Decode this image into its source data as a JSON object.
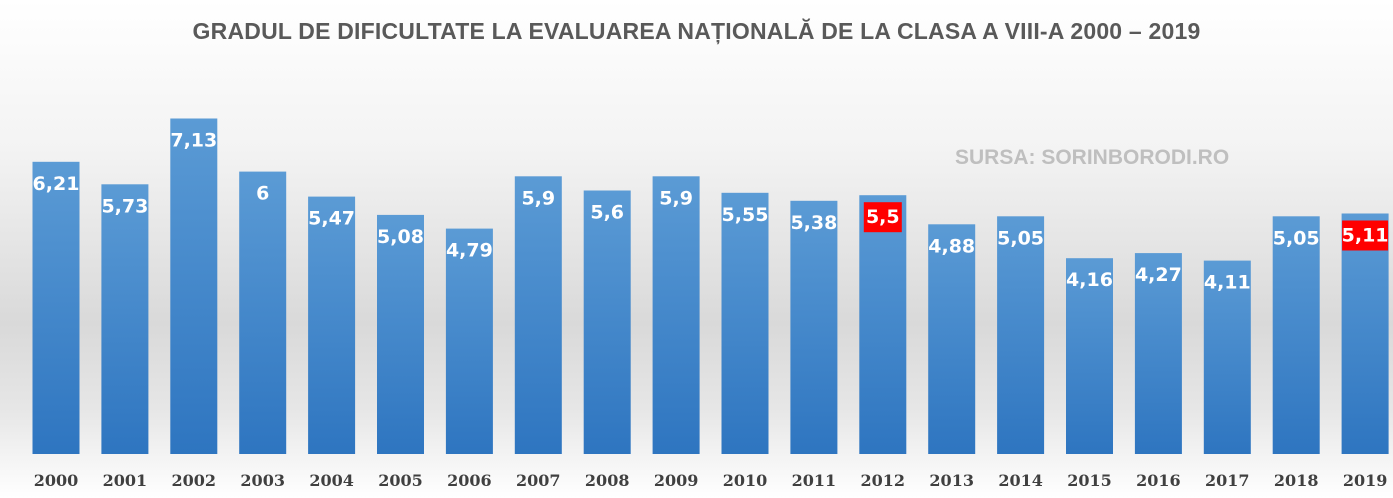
{
  "chart_data": {
    "type": "bar",
    "title": "GRADUL DE DIFICULTATE LA EVALUAREA NAȚIONALĂ DE LA CLASA A VIII-A 2000 – 2019",
    "annotation": "SURSA: SORINBORODI.RO",
    "categories": [
      "2000",
      "2001",
      "2002",
      "2003",
      "2004",
      "2005",
      "2006",
      "2007",
      "2008",
      "2009",
      "2010",
      "2011",
      "2012",
      "2013",
      "2014",
      "2015",
      "2016",
      "2017",
      "2018",
      "2019"
    ],
    "values": [
      6.21,
      5.73,
      7.13,
      6,
      5.47,
      5.08,
      4.79,
      5.9,
      5.6,
      5.9,
      5.55,
      5.38,
      5.5,
      4.88,
      5.05,
      4.16,
      4.27,
      4.11,
      5.05,
      5.11
    ],
    "value_labels": [
      "6,21",
      "5,73",
      "7,13",
      "6",
      "5,47",
      "5,08",
      "4,79",
      "5,9",
      "5,6",
      "5,9",
      "5,55",
      "5,38",
      "5,5",
      "4,88",
      "5,05",
      "4,16",
      "4,27",
      "4,11",
      "5,05",
      "5,11"
    ],
    "highlighted": [
      "2012",
      "2019"
    ],
    "xlabel": "",
    "ylabel": "",
    "ylim": [
      0,
      8
    ],
    "grid": false,
    "legend": "none",
    "colors": {
      "bar_top": "#5b9bd5",
      "bar_bottom": "#2e75c0",
      "highlight_label_bg": "#ff0000",
      "label_text": "#ffffff",
      "title_text": "#595959",
      "annotation_text": "#bfbfbf",
      "tick_text": "#404040"
    }
  }
}
